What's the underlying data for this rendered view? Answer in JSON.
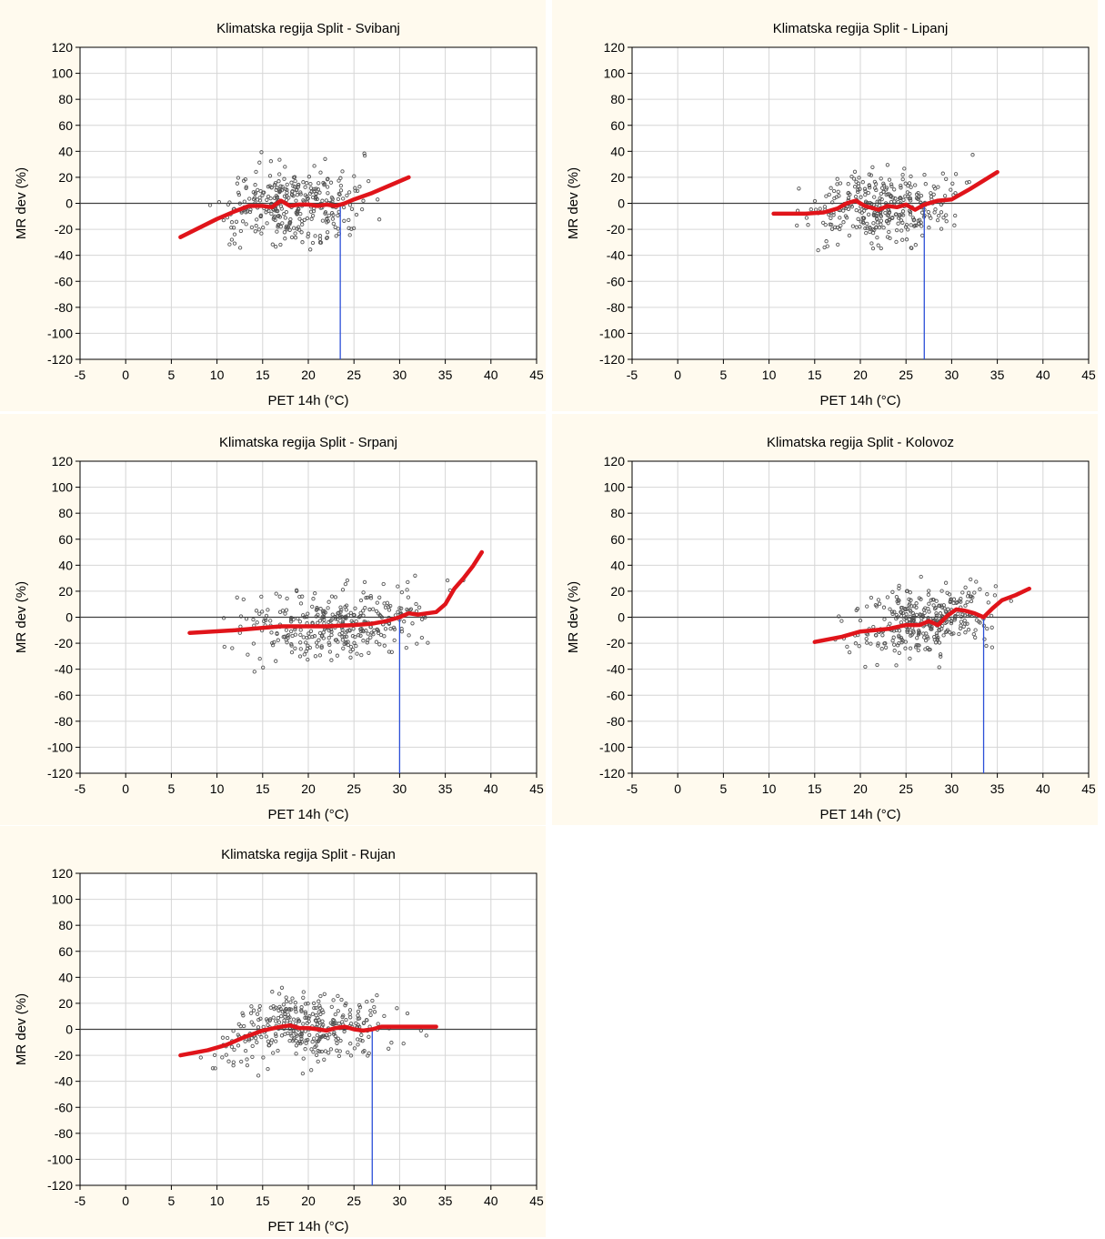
{
  "chart_data": [
    {
      "type": "scatter",
      "title": "Klimatska regija Split - Svibanj",
      "xlabel": "PET 14h (°C)",
      "ylabel": "MR dev (%)",
      "xlim": [
        -5,
        45
      ],
      "ylim": [
        -120,
        120
      ],
      "xticks": [
        -5,
        0,
        5,
        10,
        15,
        20,
        25,
        30,
        35,
        40,
        45
      ],
      "yticks": [
        120,
        100,
        80,
        60,
        40,
        20,
        0,
        -20,
        -40,
        -60,
        -80,
        -100,
        -120
      ],
      "grid": true,
      "reference_x": 23.5,
      "scatter_range": {
        "x": [
          6,
          31
        ],
        "y_spread": 32
      },
      "trend": {
        "x": [
          6,
          8,
          10,
          12,
          13.5,
          15,
          16,
          17,
          18,
          19,
          20,
          21,
          22,
          23,
          24,
          25,
          27,
          29,
          31
        ],
        "y": [
          -26,
          -19,
          -12,
          -6,
          -2,
          -2,
          -3,
          2,
          -2,
          -1,
          -1,
          -2,
          -1,
          -2,
          0,
          3,
          8,
          14,
          20
        ]
      }
    },
    {
      "type": "scatter",
      "title": "Klimatska regija Split - Lipanj",
      "xlabel": "PET 14h (°C)",
      "ylabel": "MR dev (%)",
      "xlim": [
        -5,
        45
      ],
      "ylim": [
        -120,
        120
      ],
      "xticks": [
        -5,
        0,
        5,
        10,
        15,
        20,
        25,
        30,
        35,
        40,
        45
      ],
      "yticks": [
        120,
        100,
        80,
        60,
        40,
        20,
        0,
        -20,
        -40,
        -60,
        -80,
        -100,
        -120
      ],
      "grid": true,
      "reference_x": 27,
      "scatter_range": {
        "x": [
          10,
          35
        ],
        "y_spread": 30
      },
      "trend": {
        "x": [
          10.5,
          14,
          16,
          17.5,
          18.5,
          19.5,
          20.5,
          22,
          23,
          24,
          25,
          26,
          27,
          28.5,
          30,
          32,
          35
        ],
        "y": [
          -8,
          -8,
          -7,
          -4,
          0,
          2,
          -2,
          -5,
          -2,
          -3,
          -1,
          -5,
          -1,
          2,
          3,
          11,
          24
        ]
      }
    },
    {
      "type": "scatter",
      "title": "Klimatska regija Split - Srpanj",
      "xlabel": "PET 14h (°C)",
      "ylabel": "MR dev (%)",
      "xlim": [
        -5,
        45
      ],
      "ylim": [
        -120,
        120
      ],
      "xticks": [
        -5,
        0,
        5,
        10,
        15,
        20,
        25,
        30,
        35,
        40,
        45
      ],
      "yticks": [
        120,
        100,
        80,
        60,
        40,
        20,
        0,
        -20,
        -40,
        -60,
        -80,
        -100,
        -120
      ],
      "grid": true,
      "reference_x": 30,
      "scatter_range": {
        "x": [
          7,
          39
        ],
        "y_spread": 30
      },
      "trend": {
        "x": [
          7,
          12,
          17,
          22,
          25,
          27,
          28.5,
          30,
          31,
          32,
          33,
          34,
          35,
          36,
          37,
          38,
          39
        ],
        "y": [
          -12,
          -10,
          -7,
          -7,
          -6,
          -5,
          -3,
          0,
          3,
          2,
          3,
          4,
          10,
          22,
          30,
          39,
          50
        ]
      }
    },
    {
      "type": "scatter",
      "title": "Klimatska regija Split - Kolovoz",
      "xlabel": "PET 14h (°C)",
      "ylabel": "MR dev (%)",
      "xlim": [
        -5,
        45
      ],
      "ylim": [
        -120,
        120
      ],
      "xticks": [
        -5,
        0,
        5,
        10,
        15,
        20,
        25,
        30,
        35,
        40,
        45
      ],
      "yticks": [
        120,
        100,
        80,
        60,
        40,
        20,
        0,
        -20,
        -40,
        -60,
        -80,
        -100,
        -120
      ],
      "grid": true,
      "reference_x": 33.5,
      "scatter_range": {
        "x": [
          15,
          38.5
        ],
        "y_spread": 28
      },
      "trend": {
        "x": [
          15,
          18,
          20,
          23,
          25,
          26.5,
          27.5,
          28.5,
          29.5,
          30.5,
          31.5,
          32.5,
          33.5,
          34.5,
          35.5,
          37,
          38.5
        ],
        "y": [
          -19,
          -15,
          -11,
          -9,
          -6,
          -6,
          -3,
          -6,
          1,
          6,
          5,
          3,
          0,
          7,
          13,
          17,
          22
        ]
      }
    },
    {
      "type": "scatter",
      "title": "Klimatska regija Split - Rujan",
      "xlabel": "PET 14h (°C)",
      "ylabel": "MR dev (%)",
      "xlim": [
        -5,
        45
      ],
      "ylim": [
        -120,
        120
      ],
      "xticks": [
        -5,
        0,
        5,
        10,
        15,
        20,
        25,
        30,
        35,
        40,
        45
      ],
      "yticks": [
        120,
        100,
        80,
        60,
        40,
        20,
        0,
        -20,
        -40,
        -60,
        -80,
        -100,
        -120
      ],
      "grid": true,
      "reference_x": 27,
      "scatter_range": {
        "x": [
          6,
          34
        ],
        "y_spread": 28
      },
      "trend": {
        "x": [
          6,
          9,
          11,
          13,
          15,
          17,
          18,
          19,
          20,
          21,
          22,
          23,
          24,
          25,
          26,
          27,
          28,
          30,
          32,
          34
        ],
        "y": [
          -20,
          -16,
          -12,
          -6,
          -1,
          2,
          3,
          1,
          1,
          0,
          -1,
          1,
          2,
          0,
          -1,
          0,
          2,
          2,
          2,
          2
        ]
      }
    }
  ],
  "colors": {
    "points": "#555555",
    "trend": "#e0141a",
    "reference": "#2b4fd8",
    "zero_line": "#404040",
    "panel_bg": "#fffaee",
    "grid": "#d6d6d6"
  }
}
